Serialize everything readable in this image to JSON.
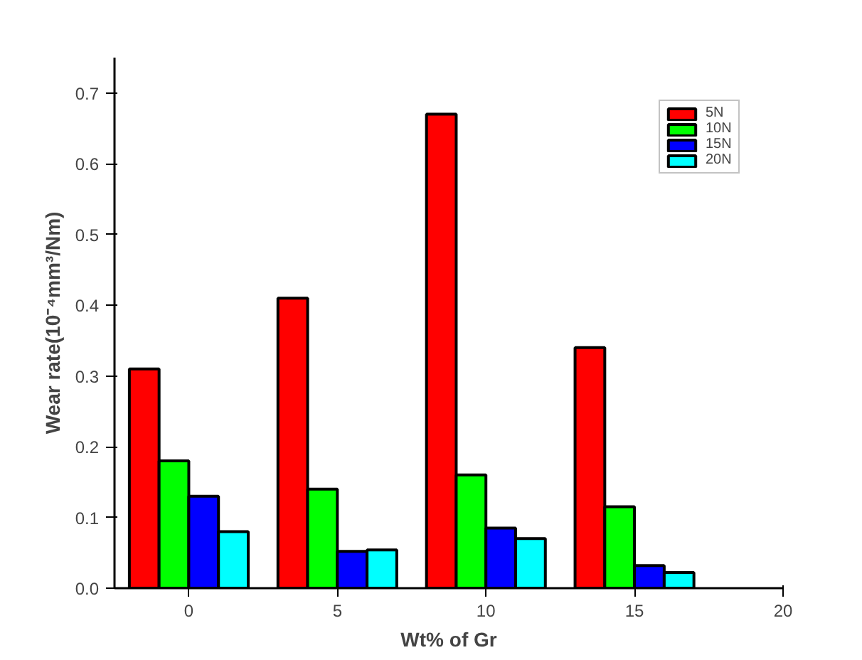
{
  "chart_data": {
    "type": "bar",
    "xlabel": "Wt% of Gr",
    "ylabel": "Wear rate(10⁻⁴mm³/Nm)",
    "x": [
      0,
      5,
      10,
      15
    ],
    "series": [
      {
        "name": "5N",
        "color": "#ff0000",
        "values": [
          0.31,
          0.41,
          0.67,
          0.34
        ]
      },
      {
        "name": "10N",
        "color": "#00ff00",
        "values": [
          0.18,
          0.14,
          0.16,
          0.115
        ]
      },
      {
        "name": "15N",
        "color": "#0000ff",
        "values": [
          0.13,
          0.052,
          0.085,
          0.032
        ]
      },
      {
        "name": "20N",
        "color": "#00ffff",
        "values": [
          0.08,
          0.054,
          0.07,
          0.022
        ]
      }
    ],
    "xlim": [
      -2.5,
      20
    ],
    "xticks": [
      0,
      5,
      10,
      15,
      20
    ],
    "ylim": [
      0,
      0.75
    ],
    "yticks": [
      {
        "value": 0,
        "label": "0.0"
      },
      {
        "value": 0.1,
        "label": "0.1"
      },
      {
        "value": 0.2,
        "label": "0.2"
      },
      {
        "value": 0.3,
        "label": "0.3"
      },
      {
        "value": 0.4,
        "label": "0.4"
      },
      {
        "value": 0.5,
        "label": "0.5"
      },
      {
        "value": 0.6,
        "label": "0.6"
      },
      {
        "value": 0.7,
        "label": "0.7"
      }
    ],
    "grid": false,
    "legend": "top right"
  }
}
